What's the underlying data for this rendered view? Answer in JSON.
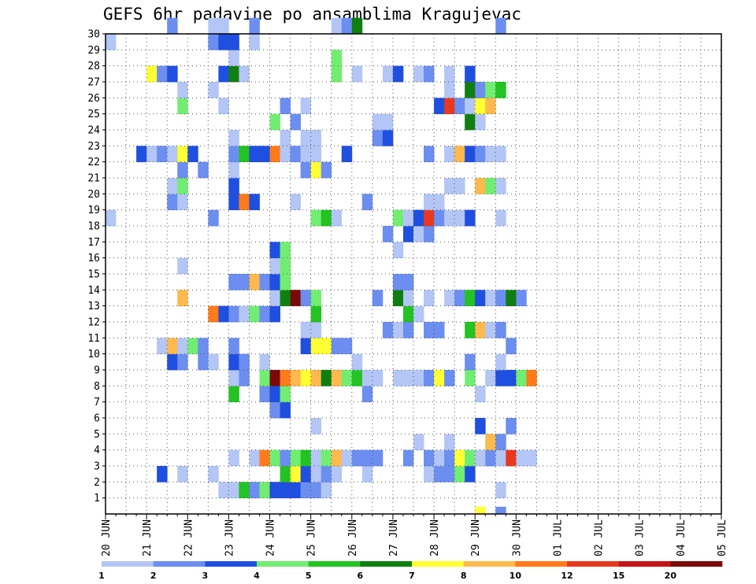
{
  "chart_data": {
    "type": "heatmap",
    "title": "GEFS 6hr padavine po ansamblima Kragujevac",
    "xlabel": "",
    "ylabel": "",
    "x_tick_labels": [
      "20 JUN",
      "21 JUN",
      "22 JUN",
      "23 JUN",
      "24 JUN",
      "25 JUN",
      "26 JUN",
      "27 JUN",
      "28 JUN",
      "29 JUN",
      "30 JUN",
      "01 JUL",
      "02 JUL",
      "03 JUL",
      "04 JUL",
      "05 JUL"
    ],
    "x_range": [
      "20 JUN 00UTC",
      "05 JUL 00UTC"
    ],
    "x_step": "6hr",
    "y_tick_labels": [
      "1",
      "2",
      "3",
      "4",
      "5",
      "6",
      "7",
      "8",
      "9",
      "10",
      "11",
      "12",
      "13",
      "14",
      "15",
      "16",
      "17",
      "18",
      "19",
      "20",
      "21",
      "22",
      "23",
      "24",
      "25",
      "26",
      "27",
      "28",
      "29",
      "30"
    ],
    "grid": true,
    "legend": {
      "placement": "bottom",
      "levels": [
        "1",
        "2",
        "3",
        "4",
        "5",
        "6",
        "7",
        "8",
        "10",
        "12",
        "15",
        "20"
      ],
      "colors": [
        "#b3c6f5",
        "#6b8ef0",
        "#1f4fe0",
        "#71ee71",
        "#22c322",
        "#0f7f0f",
        "#ffff33",
        "#ffb94d",
        "#ff7a1a",
        "#e8391e",
        "#c41414",
        "#7a0a0a"
      ]
    },
    "colors_by_class": {
      "1": "#b3c6f5",
      "2": "#6b8ef0",
      "3": "#1f4fe0",
      "4": "#71ee71",
      "5": "#22c322",
      "6": "#0f7f0f",
      "7": "#ffff33",
      "8": "#ffb94d",
      "9": "#ff7a1a",
      "10": "#e8391e",
      "11": "#c41414",
      "12": "#7a0a0a"
    },
    "member_rows": {
      "30": [
        [
          6,
          2
        ],
        [
          10,
          1
        ],
        [
          11,
          1
        ],
        [
          14,
          2
        ],
        [
          22,
          1
        ],
        [
          23,
          2
        ],
        [
          24,
          6
        ],
        [
          38,
          2
        ]
      ],
      "29": [
        [
          0,
          1
        ],
        [
          10,
          2
        ],
        [
          11,
          3
        ],
        [
          12,
          3
        ],
        [
          14,
          1
        ]
      ],
      "28": [
        [
          12,
          1
        ],
        [
          22,
          4
        ]
      ],
      "27": [
        [
          4,
          7
        ],
        [
          5,
          2
        ],
        [
          6,
          3
        ],
        [
          11,
          3
        ],
        [
          12,
          6
        ],
        [
          13,
          1
        ],
        [
          22,
          4
        ],
        [
          24,
          1
        ],
        [
          27,
          1
        ],
        [
          28,
          3
        ],
        [
          30,
          1
        ],
        [
          31,
          2
        ],
        [
          33,
          1
        ],
        [
          35,
          3
        ]
      ],
      "26": [
        [
          7,
          1
        ],
        [
          10,
          1
        ],
        [
          33,
          1
        ],
        [
          35,
          6
        ],
        [
          36,
          2
        ],
        [
          37,
          4
        ],
        [
          38,
          5
        ]
      ],
      "25": [
        [
          7,
          4
        ],
        [
          11,
          1
        ],
        [
          17,
          2
        ],
        [
          19,
          1
        ],
        [
          32,
          3
        ],
        [
          33,
          10
        ],
        [
          34,
          2
        ],
        [
          35,
          1
        ],
        [
          36,
          7
        ],
        [
          37,
          8
        ]
      ],
      "24": [
        [
          16,
          4
        ],
        [
          18,
          2
        ],
        [
          26,
          1
        ],
        [
          27,
          1
        ],
        [
          35,
          6
        ],
        [
          36,
          1
        ]
      ],
      "23": [
        [
          12,
          1
        ],
        [
          17,
          1
        ],
        [
          19,
          1
        ],
        [
          20,
          1
        ],
        [
          26,
          2
        ],
        [
          27,
          3
        ]
      ],
      "22": [
        [
          3,
          3
        ],
        [
          4,
          1
        ],
        [
          5,
          2
        ],
        [
          6,
          1
        ],
        [
          7,
          7
        ],
        [
          8,
          3
        ],
        [
          12,
          2
        ],
        [
          13,
          5
        ],
        [
          14,
          3
        ],
        [
          15,
          3
        ],
        [
          16,
          9
        ],
        [
          17,
          1
        ],
        [
          18,
          2
        ],
        [
          19,
          1
        ],
        [
          20,
          1
        ],
        [
          23,
          3
        ],
        [
          31,
          2
        ],
        [
          33,
          1
        ],
        [
          34,
          8
        ],
        [
          35,
          3
        ],
        [
          36,
          2
        ],
        [
          37,
          1
        ],
        [
          38,
          1
        ]
      ],
      "21": [
        [
          7,
          2
        ],
        [
          9,
          2
        ],
        [
          12,
          1
        ],
        [
          19,
          2
        ],
        [
          20,
          7
        ],
        [
          21,
          2
        ]
      ],
      "20": [
        [
          6,
          1
        ],
        [
          7,
          4
        ],
        [
          12,
          3
        ],
        [
          33,
          1
        ],
        [
          34,
          1
        ],
        [
          36,
          8
        ],
        [
          37,
          4
        ],
        [
          38,
          1
        ]
      ],
      "19": [
        [
          6,
          2
        ],
        [
          7,
          1
        ],
        [
          12,
          3
        ],
        [
          13,
          9
        ],
        [
          14,
          3
        ],
        [
          18,
          1
        ],
        [
          25,
          2
        ],
        [
          31,
          1
        ],
        [
          32,
          1
        ]
      ],
      "18": [
        [
          0,
          1
        ],
        [
          10,
          2
        ],
        [
          20,
          4
        ],
        [
          21,
          5
        ],
        [
          22,
          1
        ],
        [
          28,
          4
        ],
        [
          29,
          1
        ],
        [
          30,
          3
        ],
        [
          31,
          10
        ],
        [
          32,
          2
        ],
        [
          33,
          1
        ],
        [
          34,
          1
        ],
        [
          35,
          3
        ],
        [
          38,
          1
        ]
      ],
      "17": [
        [
          27,
          2
        ],
        [
          29,
          3
        ],
        [
          30,
          1
        ],
        [
          31,
          2
        ]
      ],
      "16": [
        [
          16,
          3
        ],
        [
          17,
          4
        ],
        [
          28,
          1
        ]
      ],
      "15": [
        [
          7,
          1
        ],
        [
          16,
          1
        ],
        [
          17,
          4
        ]
      ],
      "14": [
        [
          12,
          2
        ],
        [
          13,
          2
        ],
        [
          14,
          8
        ],
        [
          15,
          2
        ],
        [
          16,
          3
        ],
        [
          17,
          4
        ],
        [
          28,
          2
        ],
        [
          29,
          2
        ]
      ],
      "13": [
        [
          7,
          8
        ],
        [
          16,
          1
        ],
        [
          17,
          6
        ],
        [
          18,
          12
        ],
        [
          19,
          2
        ],
        [
          20,
          4
        ],
        [
          26,
          2
        ],
        [
          28,
          6
        ],
        [
          29,
          1
        ],
        [
          31,
          1
        ],
        [
          33,
          1
        ],
        [
          34,
          2
        ],
        [
          35,
          5
        ],
        [
          36,
          3
        ],
        [
          37,
          1
        ],
        [
          38,
          2
        ],
        [
          39,
          6
        ],
        [
          40,
          2
        ]
      ],
      "12": [
        [
          10,
          9
        ],
        [
          11,
          3
        ],
        [
          12,
          2
        ],
        [
          13,
          1
        ],
        [
          14,
          4
        ],
        [
          15,
          2
        ],
        [
          16,
          3
        ],
        [
          20,
          5
        ],
        [
          29,
          5
        ],
        [
          30,
          1
        ]
      ],
      "11": [
        [
          19,
          1
        ],
        [
          20,
          1
        ],
        [
          27,
          2
        ],
        [
          28,
          1
        ],
        [
          29,
          2
        ],
        [
          31,
          2
        ],
        [
          32,
          2
        ],
        [
          35,
          5
        ],
        [
          36,
          8
        ],
        [
          37,
          1
        ],
        [
          38,
          2
        ]
      ],
      "10": [
        [
          5,
          1
        ],
        [
          6,
          8
        ],
        [
          7,
          1
        ],
        [
          8,
          4
        ],
        [
          9,
          2
        ],
        [
          12,
          2
        ],
        [
          19,
          3
        ],
        [
          20,
          7
        ],
        [
          21,
          7
        ],
        [
          22,
          2
        ],
        [
          23,
          2
        ],
        [
          39,
          2
        ]
      ],
      "9": [
        [
          6,
          3
        ],
        [
          7,
          2
        ],
        [
          9,
          2
        ],
        [
          10,
          1
        ],
        [
          12,
          3
        ],
        [
          13,
          2
        ],
        [
          15,
          1
        ],
        [
          24,
          1
        ],
        [
          35,
          2
        ],
        [
          38,
          1
        ]
      ],
      "8": [
        [
          12,
          1
        ],
        [
          13,
          2
        ],
        [
          15,
          4
        ],
        [
          16,
          12
        ],
        [
          17,
          9
        ],
        [
          18,
          8
        ],
        [
          19,
          7
        ],
        [
          20,
          8
        ],
        [
          21,
          6
        ],
        [
          22,
          8
        ],
        [
          23,
          4
        ],
        [
          24,
          5
        ],
        [
          25,
          1
        ],
        [
          26,
          1
        ],
        [
          28,
          1
        ],
        [
          29,
          1
        ],
        [
          30,
          1
        ],
        [
          31,
          2
        ],
        [
          32,
          7
        ],
        [
          33,
          2
        ],
        [
          35,
          4
        ],
        [
          37,
          1
        ],
        [
          38,
          3
        ],
        [
          39,
          3
        ],
        [
          40,
          4
        ],
        [
          41,
          9
        ]
      ],
      "7": [
        [
          12,
          5
        ],
        [
          15,
          2
        ],
        [
          16,
          3
        ],
        [
          17,
          4
        ],
        [
          25,
          2
        ],
        [
          36,
          1
        ]
      ],
      "6": [
        [
          16,
          2
        ],
        [
          17,
          3
        ]
      ],
      "5": [
        [
          20,
          1
        ],
        [
          36,
          3
        ],
        [
          39,
          2
        ]
      ],
      "4": [
        [
          30,
          1
        ],
        [
          33,
          1
        ],
        [
          37,
          8
        ],
        [
          38,
          2
        ]
      ],
      "3": [
        [
          12,
          1
        ],
        [
          14,
          1
        ],
        [
          15,
          9
        ],
        [
          16,
          4
        ],
        [
          17,
          2
        ],
        [
          18,
          4
        ],
        [
          19,
          5
        ],
        [
          20,
          1
        ],
        [
          21,
          4
        ],
        [
          22,
          8
        ],
        [
          23,
          1
        ],
        [
          24,
          2
        ],
        [
          25,
          2
        ],
        [
          26,
          2
        ],
        [
          29,
          2
        ],
        [
          31,
          2
        ],
        [
          32,
          1
        ],
        [
          33,
          2
        ],
        [
          34,
          7
        ],
        [
          35,
          4
        ],
        [
          36,
          1
        ],
        [
          37,
          2
        ],
        [
          38,
          1
        ],
        [
          39,
          10
        ],
        [
          40,
          1
        ],
        [
          41,
          1
        ]
      ],
      "2": [
        [
          5,
          3
        ],
        [
          7,
          1
        ],
        [
          10,
          1
        ],
        [
          17,
          5
        ],
        [
          18,
          7
        ],
        [
          19,
          3
        ],
        [
          20,
          1
        ],
        [
          21,
          2
        ],
        [
          22,
          1
        ],
        [
          25,
          1
        ],
        [
          31,
          1
        ],
        [
          32,
          2
        ],
        [
          33,
          2
        ],
        [
          34,
          4
        ],
        [
          35,
          3
        ]
      ],
      "1": [
        [
          11,
          1
        ],
        [
          12,
          1
        ],
        [
          13,
          5
        ],
        [
          14,
          2
        ],
        [
          15,
          4
        ],
        [
          16,
          3
        ],
        [
          17,
          3
        ],
        [
          18,
          3
        ],
        [
          19,
          2
        ],
        [
          20,
          2
        ],
        [
          21,
          1
        ],
        [
          38,
          1
        ]
      ],
      "0": [
        [
          36,
          7
        ],
        [
          38,
          2
        ]
      ]
    }
  }
}
